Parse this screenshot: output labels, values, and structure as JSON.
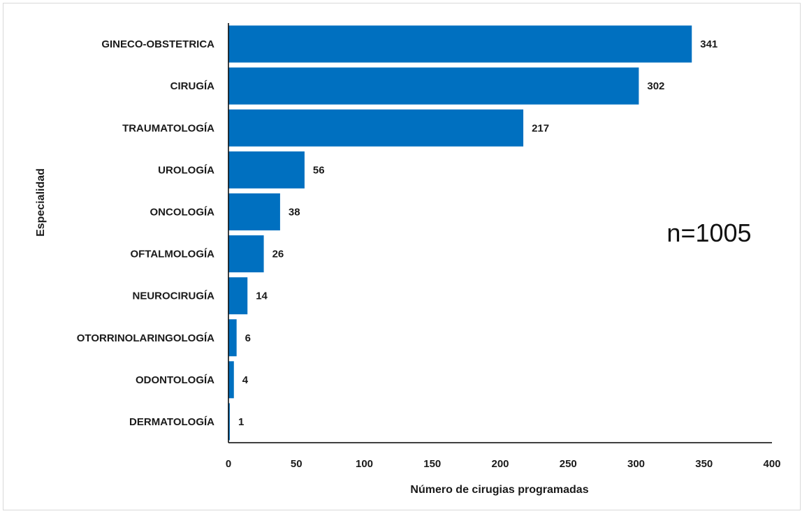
{
  "chart_data": {
    "type": "bar",
    "orientation": "horizontal",
    "categories": [
      "GINECO-OBSTETRICA",
      "CIRUGÍA",
      "TRAUMATOLOGÍA",
      "UROLOGÍA",
      "ONCOLOGÍA",
      "OFTALMOLOGÍA",
      "NEUROCIRUGÍA",
      "OTORRINOLARINGOLOGÍA",
      "ODONTOLOGÍA",
      "DERMATOLOGÍA"
    ],
    "values": [
      341,
      302,
      217,
      56,
      38,
      26,
      14,
      6,
      4,
      1
    ],
    "data_labels": [
      "341",
      "302",
      "217",
      "56",
      "38",
      "26",
      "14",
      "6",
      "4",
      "1"
    ],
    "xlabel": "Número de cirugias programadas",
    "ylabel": "Especialidad",
    "xlim": [
      0,
      400
    ],
    "xticks": [
      0,
      50,
      100,
      150,
      200,
      250,
      300,
      350,
      400
    ],
    "xtick_labels": [
      "0",
      "50",
      "100",
      "150",
      "200",
      "250",
      "300",
      "350",
      "400"
    ],
    "annotation": "n=1005",
    "grid": false,
    "legend": "none",
    "bar_color": "#0070C0"
  }
}
